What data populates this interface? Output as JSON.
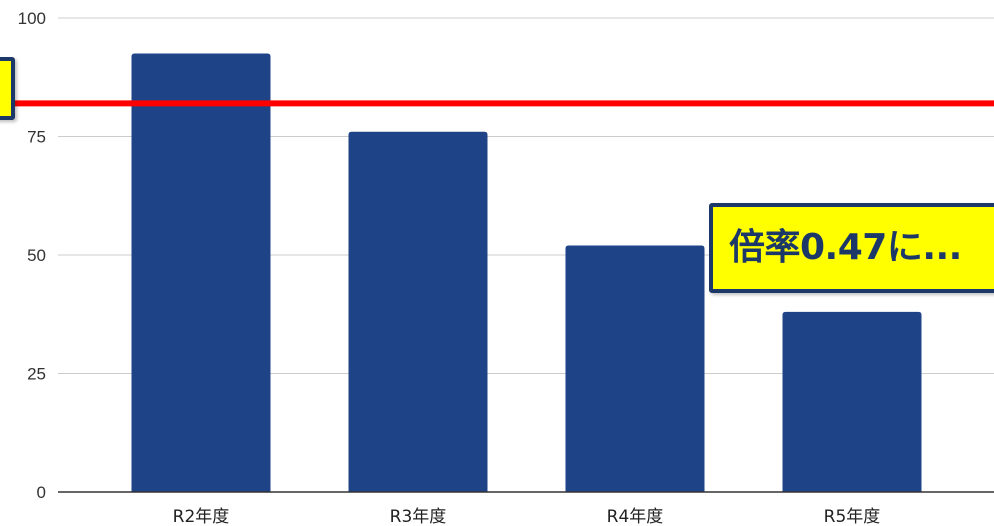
{
  "chart_data": {
    "type": "bar",
    "categories": [
      "R2年度",
      "R3年度",
      "R4年度",
      "R5年度"
    ],
    "values": [
      92.5,
      76,
      52,
      38
    ],
    "ylim": [
      0,
      100
    ],
    "yticks": [
      0,
      25,
      50,
      75,
      100
    ],
    "ytick_labels": [
      "0",
      "25",
      "50",
      "75",
      "100"
    ],
    "grid": true,
    "bar_color": "#1f4387",
    "reference_line": {
      "value": 82,
      "color": "#ff0000"
    }
  },
  "annotations": {
    "right_callout_text": "倍率0.47に...",
    "left_callout_text": "",
    "callout_fill": "#ffff00",
    "callout_border": "#1b3868"
  }
}
